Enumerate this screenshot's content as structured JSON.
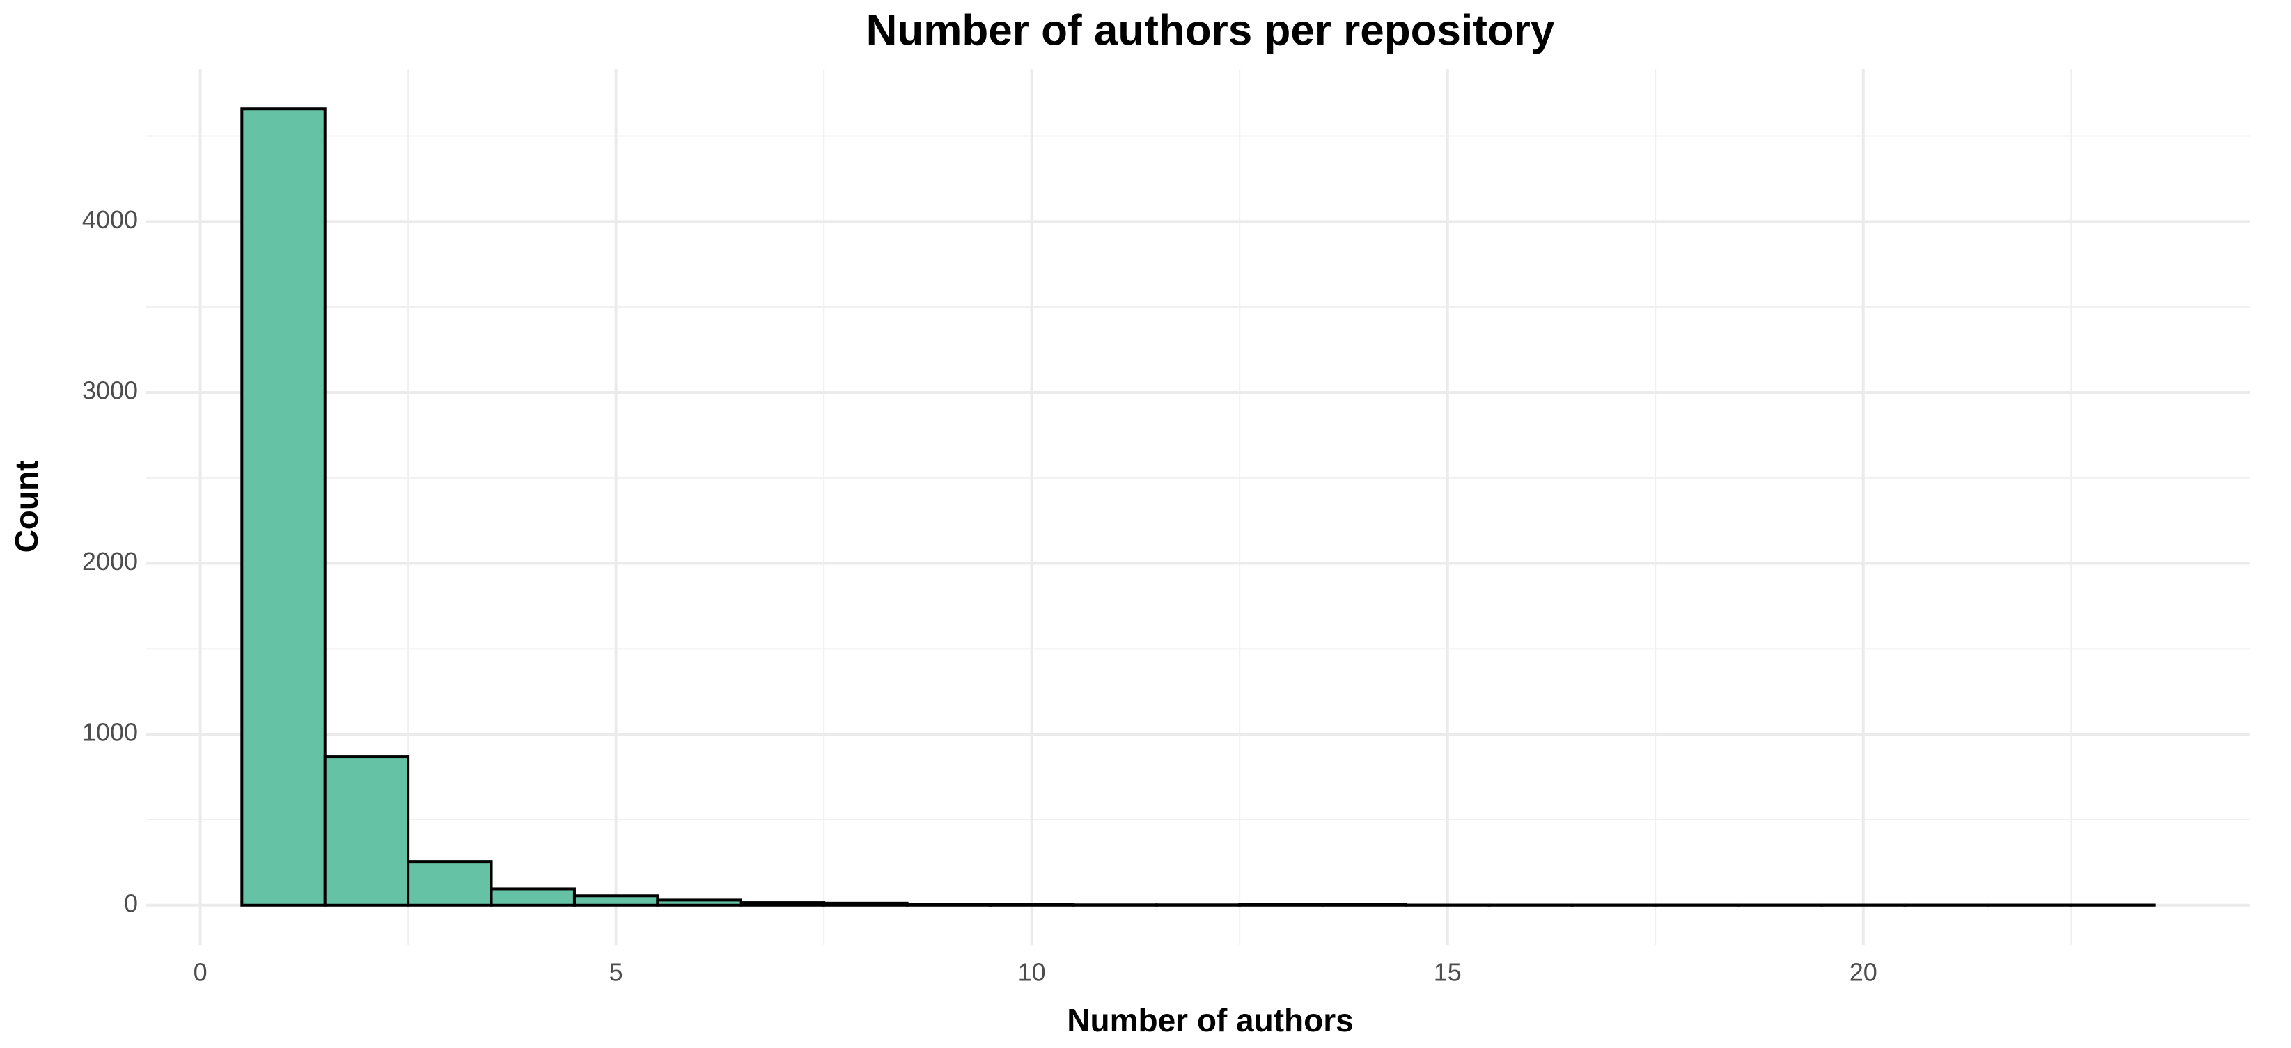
{
  "chart_data": {
    "type": "histogram",
    "title": "Number of authors per repository",
    "x_label": "Number of authors",
    "y_label": "Count",
    "bins": [
      0.5,
      1.5,
      2.5,
      3.5,
      4.5,
      5.5,
      6.5,
      7.5,
      8.5,
      9.5,
      10.5,
      11.5,
      12.5,
      13.5,
      14.5,
      15.5,
      16.5,
      17.5,
      18.5,
      19.5,
      20.5,
      21.5,
      22.5,
      23.5
    ],
    "values": [
      4660,
      870,
      255,
      95,
      55,
      30,
      15,
      12,
      5,
      5,
      2,
      2,
      5,
      5,
      1,
      1,
      1,
      1,
      1,
      1,
      1,
      1,
      1
    ],
    "color": "#66c2a5",
    "edge_color": "#000000",
    "xlim": [
      -0.65,
      24.65
    ],
    "ylim": [
      -233,
      4893
    ],
    "xticks": [
      0,
      5,
      10,
      15,
      20
    ],
    "yticks": [
      0,
      1000,
      2000,
      3000,
      4000
    ],
    "grid": true,
    "minor_grid": true
  }
}
